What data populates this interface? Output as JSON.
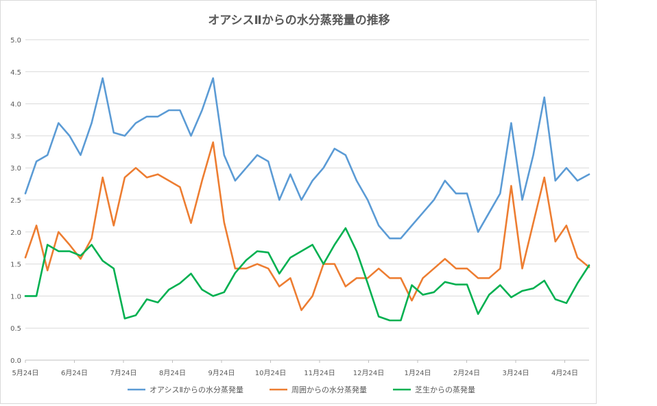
{
  "chart_data": {
    "type": "line",
    "title": "オアシスⅡからの水分蒸発量の推移",
    "xlabel": "",
    "ylabel": "",
    "ylim": [
      0,
      5
    ],
    "yticks": [
      "0.0",
      "0.5",
      "1.0",
      "1.5",
      "2.0",
      "2.5",
      "3.0",
      "3.5",
      "4.0",
      "4.5",
      "5.0"
    ],
    "xticks": [
      "5月24日",
      "6月24日",
      "7月24日",
      "8月24日",
      "9月24日",
      "10月24日",
      "11月24日",
      "12月24日",
      "1月24日",
      "2月24日",
      "3月24日",
      "4月24日"
    ],
    "grid": true,
    "legend_position": "bottom",
    "series": [
      {
        "name": "オアシスⅡからの水分蒸発量",
        "color": "#5b9bd5",
        "x": [
          "5月24日",
          "5月31日",
          "6月7日",
          "6月14日",
          "6月21日",
          "6月28日",
          "7月5日",
          "7月12日",
          "7月19日",
          "7月26日",
          "8月2日",
          "8月9日",
          "8月16日",
          "8月23日",
          "8月30日",
          "9月6日",
          "9月13日",
          "9月20日",
          "9月27日",
          "10月4日",
          "10月11日",
          "10月18日",
          "10月25日",
          "11月1日",
          "11月8日",
          "11月15日",
          "11月22日",
          "11月29日",
          "12月6日",
          "12月13日",
          "12月20日",
          "12月27日",
          "1月3日",
          "1月10日",
          "1月17日",
          "1月24日",
          "1月31日",
          "2月7日",
          "2月14日",
          "2月21日",
          "2月28日",
          "3月7日",
          "3月14日",
          "3月21日",
          "3月28日",
          "4月4日",
          "4月11日",
          "4月18日",
          "4月25日",
          "5月2日",
          "5月9日",
          "5月12日"
        ],
        "values": [
          2.6,
          3.1,
          3.2,
          3.7,
          3.5,
          3.2,
          3.7,
          4.4,
          3.55,
          3.5,
          3.7,
          3.8,
          3.8,
          3.9,
          3.9,
          3.5,
          3.9,
          4.4,
          3.2,
          2.8,
          3.0,
          3.2,
          3.1,
          2.5,
          2.9,
          2.5,
          2.8,
          3.0,
          3.3,
          3.2,
          2.8,
          2.5,
          2.1,
          1.9,
          1.9,
          2.1,
          2.3,
          2.5,
          2.8,
          2.6,
          2.6,
          2.0,
          2.3,
          2.6,
          3.7,
          2.5,
          3.2,
          4.1,
          2.8,
          3.0,
          2.8,
          2.9
        ]
      },
      {
        "name": "周囲からの水分蒸発量",
        "color": "#ed7d31",
        "x": [
          "5月24日",
          "5月31日",
          "6月7日",
          "6月14日",
          "6月21日",
          "6月28日",
          "7月5日",
          "7月12日",
          "7月19日",
          "7月26日",
          "8月2日",
          "8月9日",
          "8月16日",
          "8月23日",
          "8月30日",
          "9月6日",
          "9月13日",
          "9月20日",
          "9月27日",
          "10月4日",
          "10月11日",
          "10月18日",
          "10月25日",
          "11月1日",
          "11月8日",
          "11月15日",
          "11月22日",
          "11月29日",
          "12月6日",
          "12月13日",
          "12月20日",
          "12月27日",
          "1月3日",
          "1月10日",
          "1月17日",
          "1月24日",
          "1月31日",
          "2月7日",
          "2月14日",
          "2月21日",
          "2月28日",
          "3月7日",
          "3月14日",
          "3月21日",
          "3月28日",
          "4月4日",
          "4月11日",
          "4月18日",
          "4月25日",
          "5月2日",
          "5月9日",
          "5月12日"
        ],
        "values": [
          1.6,
          2.1,
          1.4,
          2.0,
          1.8,
          1.58,
          1.9,
          2.85,
          2.1,
          2.85,
          3.0,
          2.85,
          2.9,
          2.8,
          2.7,
          2.14,
          2.8,
          3.4,
          2.15,
          1.43,
          1.43,
          1.5,
          1.43,
          1.15,
          1.28,
          0.78,
          1.0,
          1.5,
          1.5,
          1.15,
          1.28,
          1.28,
          1.43,
          1.28,
          1.28,
          0.93,
          1.28,
          1.43,
          1.58,
          1.43,
          1.43,
          1.28,
          1.28,
          1.43,
          2.72,
          1.43,
          2.14,
          2.85,
          1.85,
          2.1,
          1.6,
          1.45
        ]
      },
      {
        "name": "芝生からの蒸発量",
        "color": "#00b050",
        "x": [
          "5月24日",
          "5月31日",
          "6月7日",
          "6月14日",
          "6月21日",
          "6月28日",
          "7月5日",
          "7月12日",
          "7月19日",
          "7月26日",
          "8月2日",
          "8月9日",
          "8月16日",
          "8月23日",
          "8月30日",
          "9月6日",
          "9月13日",
          "9月20日",
          "9月27日",
          "10月4日",
          "10月11日",
          "10月18日",
          "10月25日",
          "11月1日",
          "11月8日",
          "11月15日",
          "11月22日",
          "11月29日",
          "12月6日",
          "12月13日",
          "12月20日",
          "12月27日",
          "1月3日",
          "1月10日",
          "1月17日",
          "1月24日",
          "1月31日",
          "2月7日",
          "2月14日",
          "2月21日",
          "2月28日",
          "3月7日",
          "3月14日",
          "3月21日",
          "3月28日",
          "4月4日",
          "4月11日",
          "4月18日",
          "4月25日",
          "5月2日",
          "5月9日",
          "5月12日"
        ],
        "values": [
          1.0,
          1.0,
          1.8,
          1.7,
          1.7,
          1.63,
          1.8,
          1.55,
          1.43,
          0.65,
          0.7,
          0.95,
          0.9,
          1.1,
          1.2,
          1.35,
          1.1,
          1.0,
          1.06,
          1.36,
          1.56,
          1.7,
          1.68,
          1.35,
          1.6,
          1.7,
          1.8,
          1.5,
          1.8,
          2.06,
          1.7,
          1.2,
          0.68,
          0.62,
          0.62,
          1.17,
          1.02,
          1.06,
          1.22,
          1.18,
          1.18,
          0.72,
          1.02,
          1.17,
          0.98,
          1.08,
          1.12,
          1.24,
          0.95,
          0.89,
          1.2,
          1.48
        ]
      }
    ]
  }
}
